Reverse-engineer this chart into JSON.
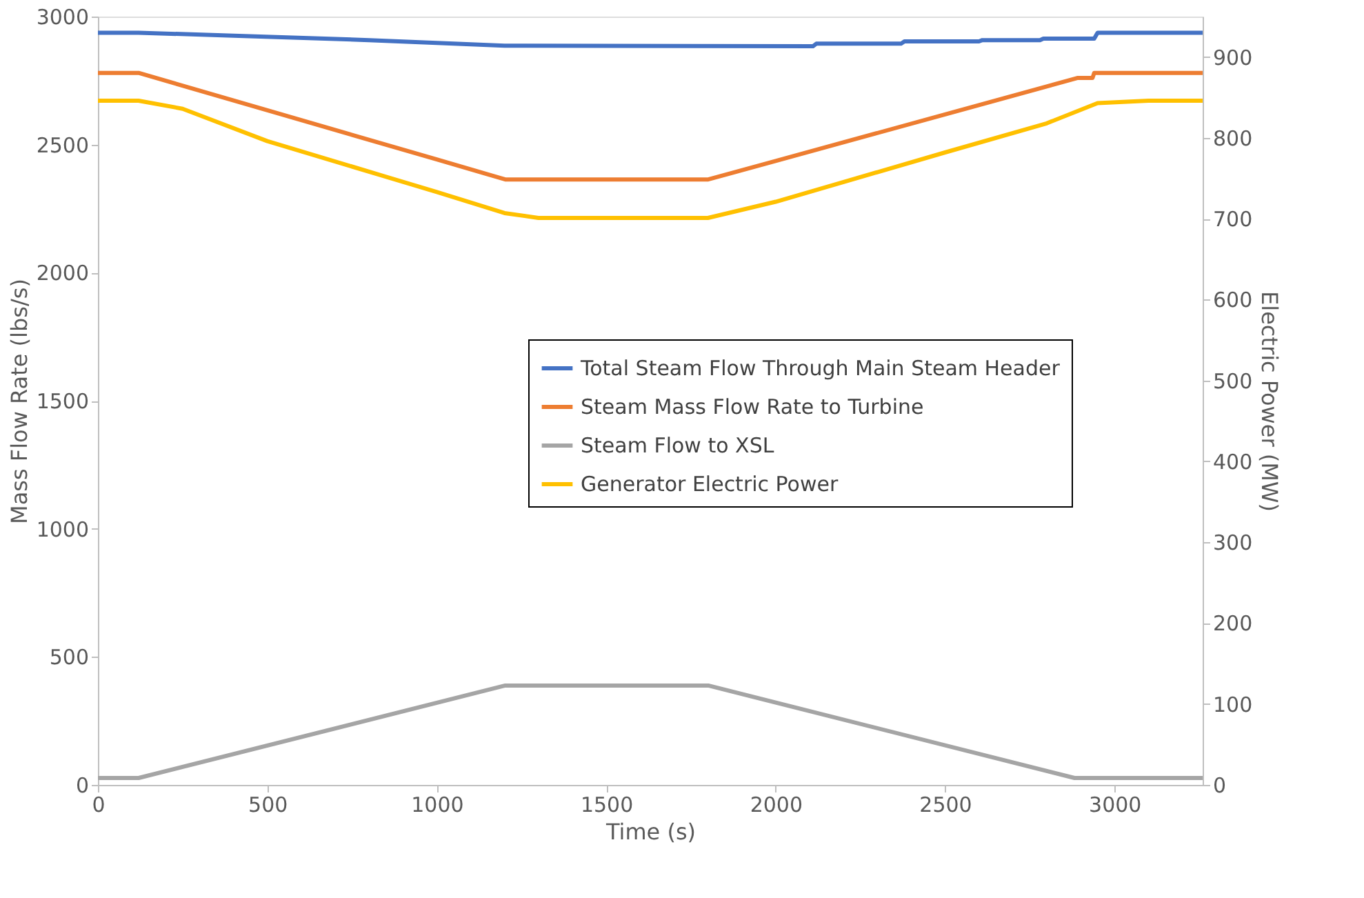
{
  "chart_data": {
    "type": "line",
    "xlabel": "Time (s)",
    "ylabel": "Mass Flow Rate (lbs/s)",
    "y2label": "Electric Power (MW)",
    "xlim": [
      0,
      3260
    ],
    "xticks": [
      0,
      500,
      1000,
      1500,
      2000,
      2500,
      3000
    ],
    "ylim": [
      0,
      3000
    ],
    "yticks": [
      0,
      500,
      1000,
      1500,
      2000,
      2500,
      3000
    ],
    "y2lim": [
      0,
      950
    ],
    "y2ticks": [
      0,
      100,
      200,
      300,
      400,
      500,
      600,
      700,
      800,
      900
    ],
    "grid": false,
    "legend": "right",
    "marker": "none",
    "line_style": "solid",
    "series": [
      {
        "name": "Total Steam Flow Through Main Steam Header",
        "color": "#4472c4",
        "x": [
          0,
          120,
          400,
          800,
          1200,
          1800,
          2110,
          2120,
          2370,
          2380,
          2600,
          2610,
          2780,
          2790,
          2940,
          2950,
          3260
        ],
        "values": [
          2937,
          2937,
          2925,
          2908,
          2886,
          2885,
          2884,
          2894,
          2894,
          2903,
          2903,
          2908,
          2908,
          2914,
          2914,
          2937,
          2937
        ]
      },
      {
        "name": "Steam Mass Flow Rate to Turbine",
        "color": "#ed7d31",
        "x": [
          0,
          120,
          500,
          1000,
          1202,
          1801,
          2000,
          2500,
          2890,
          2935,
          2940,
          3260
        ],
        "values": [
          2780,
          2780,
          2634,
          2442,
          2364,
          2364,
          2436,
          2618,
          2760,
          2760,
          2780,
          2780
        ]
      },
      {
        "name": "Steam Flow to XSL",
        "color": "#a5a5a5",
        "x": [
          0,
          120,
          1202,
          1801,
          2882,
          3260
        ],
        "values": [
          27,
          27,
          388,
          388,
          27,
          27
        ]
      },
      {
        "name": "Generator Electric Power",
        "color": "#ffc000",
        "axis": "y2",
        "x": [
          0,
          120,
          250,
          500,
          1000,
          1200,
          1300,
          1800,
          2000,
          2500,
          2800,
          2950,
          3100,
          3260
        ],
        "values": [
          846,
          846,
          836,
          796,
          733,
          707,
          701,
          701,
          721,
          782,
          818,
          843,
          846,
          846
        ]
      }
    ]
  }
}
